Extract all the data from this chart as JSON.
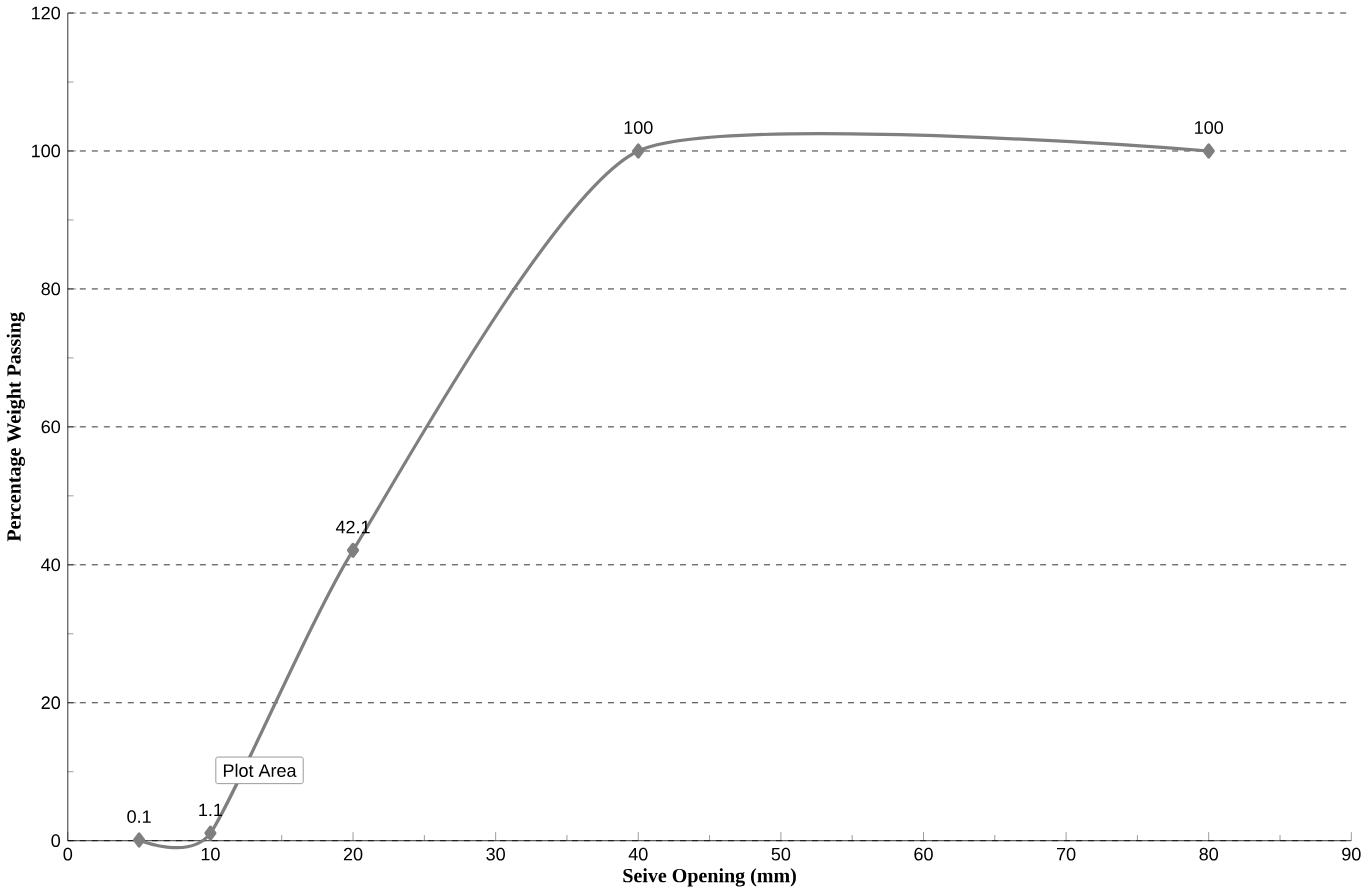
{
  "chart_data": {
    "type": "line",
    "xlabel": "Seive Opening (mm)",
    "ylabel": "Percentage Weight  Passing",
    "x": [
      5,
      10,
      20,
      40,
      80
    ],
    "series": [
      {
        "color": "#7f7f7f",
        "values": [
          0.1,
          1.1,
          42.1,
          100,
          100
        ]
      }
    ],
    "data_labels": true,
    "marker": "diamond",
    "grid": "y",
    "xlim": [
      0,
      90
    ],
    "xticks": [
      0,
      10,
      20,
      30,
      40,
      50,
      60,
      70,
      80,
      90
    ],
    "ylim": [
      0,
      120
    ],
    "yticks": [
      0,
      20,
      40,
      60,
      80,
      100,
      120
    ],
    "annotations": [
      "Plot Area"
    ]
  }
}
